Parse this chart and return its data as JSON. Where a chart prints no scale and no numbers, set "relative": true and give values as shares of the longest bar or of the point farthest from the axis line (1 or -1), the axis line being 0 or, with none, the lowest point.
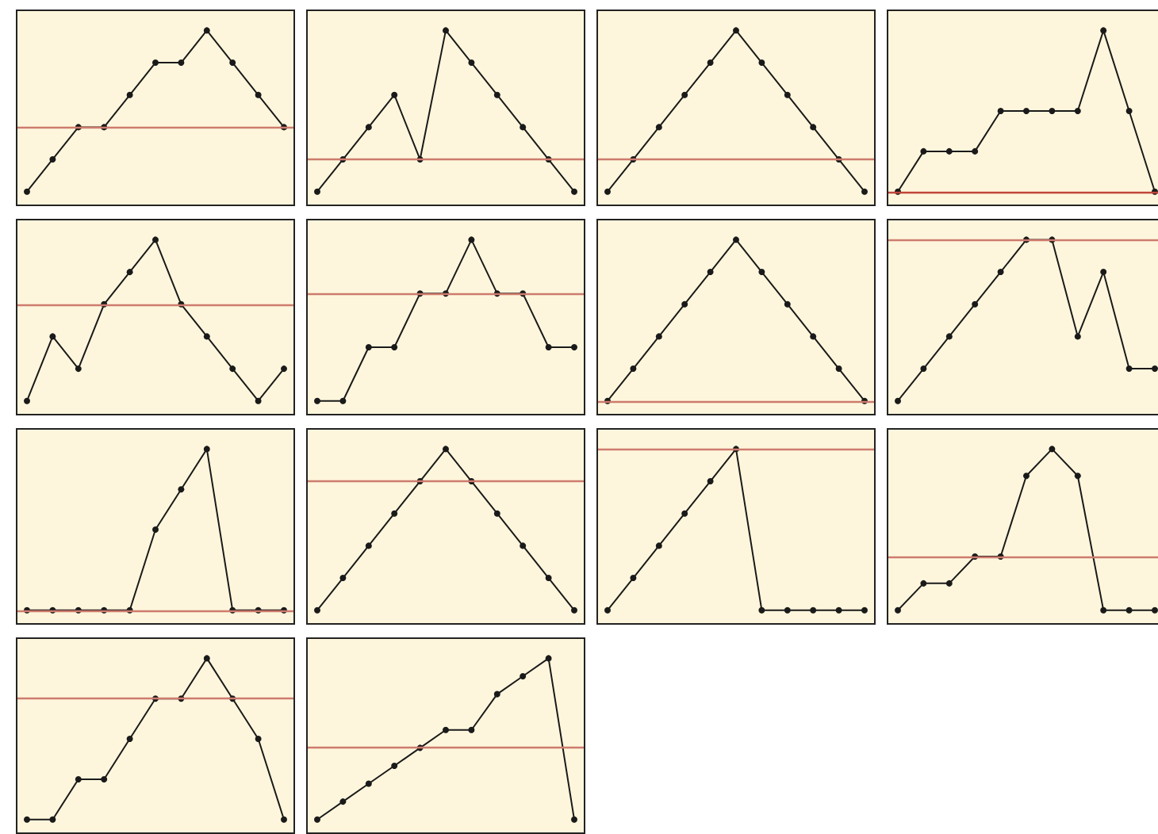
{
  "chart_data": [
    {
      "type": "line",
      "relative": true,
      "tick_labels": false,
      "marker": "circle",
      "categories": [
        null,
        null,
        null,
        null,
        null,
        null,
        null,
        null,
        null,
        null,
        null
      ],
      "series": [
        {
          "color": "#1a1a1a",
          "values": [
            -0.667,
            -0.333,
            0,
            0,
            0.333,
            0.667,
            0.667,
            1,
            0.667,
            0.333,
            0
          ]
        }
      ],
      "ref_lines": [
        {
          "axis": "y",
          "value": 0,
          "color": "#cd7b6e"
        }
      ]
    },
    {
      "type": "line",
      "relative": true,
      "tick_labels": false,
      "marker": "circle",
      "categories": [
        null,
        null,
        null,
        null,
        null,
        null,
        null,
        null,
        null,
        null,
        null
      ],
      "series": [
        {
          "color": "#1a1a1a",
          "values": [
            -0.25,
            0,
            0.25,
            0.5,
            0,
            1,
            0.75,
            0.5,
            0.25,
            0,
            -0.25
          ]
        }
      ],
      "ref_lines": [
        {
          "axis": "y",
          "value": 0,
          "color": "#cd7b6e"
        }
      ]
    },
    {
      "type": "line",
      "relative": true,
      "tick_labels": false,
      "marker": "circle",
      "categories": [
        null,
        null,
        null,
        null,
        null,
        null,
        null,
        null,
        null,
        null,
        null
      ],
      "series": [
        {
          "color": "#1a1a1a",
          "values": [
            -0.25,
            0,
            0.25,
            0.5,
            0.75,
            1,
            0.75,
            0.5,
            0.25,
            0,
            -0.25
          ]
        }
      ],
      "ref_lines": [
        {
          "axis": "y",
          "value": 0,
          "color": "#cd7b6e"
        }
      ]
    },
    {
      "type": "line",
      "relative": true,
      "tick_labels": false,
      "marker": "circle",
      "categories": [
        null,
        null,
        null,
        null,
        null,
        null,
        null,
        null,
        null,
        null,
        null
      ],
      "series": [
        {
          "color": "#1a1a1a",
          "values": [
            0,
            0.25,
            0.25,
            0.25,
            0.5,
            0.5,
            0.5,
            0.5,
            1,
            0.5,
            0
          ]
        }
      ],
      "ref_lines": [
        {
          "axis": "y",
          "value": 0,
          "color": "#c0453a"
        }
      ]
    },
    {
      "type": "line",
      "relative": true,
      "tick_labels": false,
      "marker": "circle",
      "categories": [
        null,
        null,
        null,
        null,
        null,
        null,
        null,
        null,
        null,
        null,
        null
      ],
      "series": [
        {
          "color": "#1a1a1a",
          "values": [
            -1,
            -0.333,
            -0.667,
            0,
            0.333,
            0.667,
            0,
            -0.333,
            -0.667,
            -1,
            -0.667
          ]
        }
      ],
      "ref_lines": [
        {
          "axis": "y",
          "value": 0,
          "color": "#cd7b6e"
        }
      ]
    },
    {
      "type": "line",
      "relative": true,
      "tick_labels": false,
      "marker": "circle",
      "categories": [
        null,
        null,
        null,
        null,
        null,
        null,
        null,
        null,
        null,
        null,
        null
      ],
      "series": [
        {
          "color": "#1a1a1a",
          "values": [
            -1,
            -1,
            -0.5,
            -0.5,
            0,
            0,
            0.5,
            0,
            0,
            -0.5,
            -0.5
          ]
        }
      ],
      "ref_lines": [
        {
          "axis": "y",
          "value": 0,
          "color": "#cd7b6e"
        }
      ]
    },
    {
      "type": "line",
      "relative": true,
      "tick_labels": false,
      "marker": "circle",
      "categories": [
        null,
        null,
        null,
        null,
        null,
        null,
        null,
        null,
        null,
        null,
        null
      ],
      "series": [
        {
          "color": "#1a1a1a",
          "values": [
            0,
            0.2,
            0.4,
            0.6,
            0.8,
            1,
            0.8,
            0.6,
            0.4,
            0.2,
            0
          ]
        }
      ],
      "ref_lines": [
        {
          "axis": "y",
          "value": 0,
          "color": "#cd7b6e"
        }
      ]
    },
    {
      "type": "line",
      "relative": true,
      "tick_labels": false,
      "marker": "circle",
      "categories": [
        null,
        null,
        null,
        null,
        null,
        null,
        null,
        null,
        null,
        null,
        null
      ],
      "series": [
        {
          "color": "#1a1a1a",
          "values": [
            -1,
            -0.8,
            -0.6,
            -0.4,
            -0.2,
            0,
            0,
            -0.6,
            -0.2,
            -0.8,
            -0.8
          ]
        }
      ],
      "ref_lines": [
        {
          "axis": "y",
          "value": 0,
          "color": "#cd7b6e"
        }
      ]
    },
    {
      "type": "line",
      "relative": true,
      "tick_labels": false,
      "marker": "circle",
      "categories": [
        null,
        null,
        null,
        null,
        null,
        null,
        null,
        null,
        null,
        null,
        null
      ],
      "series": [
        {
          "color": "#1a1a1a",
          "values": [
            0,
            0,
            0,
            0,
            0,
            0.5,
            0.75,
            1,
            0,
            0,
            0
          ]
        }
      ],
      "ref_lines": [
        {
          "axis": "y",
          "value": 0,
          "color": "#cd7b6e"
        }
      ]
    },
    {
      "type": "line",
      "relative": true,
      "tick_labels": false,
      "marker": "circle",
      "categories": [
        null,
        null,
        null,
        null,
        null,
        null,
        null,
        null,
        null,
        null,
        null
      ],
      "series": [
        {
          "color": "#1a1a1a",
          "values": [
            -1,
            -0.75,
            -0.5,
            -0.25,
            0,
            0.25,
            0,
            -0.25,
            -0.5,
            -0.75,
            -1
          ]
        }
      ],
      "ref_lines": [
        {
          "axis": "y",
          "value": 0,
          "color": "#cd7b6e"
        }
      ]
    },
    {
      "type": "line",
      "relative": true,
      "tick_labels": false,
      "marker": "circle",
      "categories": [
        null,
        null,
        null,
        null,
        null,
        null,
        null,
        null,
        null,
        null,
        null
      ],
      "series": [
        {
          "color": "#1a1a1a",
          "values": [
            -1,
            -0.8,
            -0.6,
            -0.4,
            -0.2,
            0,
            -1,
            -1,
            -1,
            -1,
            -1
          ]
        }
      ],
      "ref_lines": [
        {
          "axis": "y",
          "value": 0,
          "color": "#cd7b6e"
        }
      ]
    },
    {
      "type": "line",
      "relative": true,
      "tick_labels": false,
      "marker": "circle",
      "categories": [
        null,
        null,
        null,
        null,
        null,
        null,
        null,
        null,
        null,
        null,
        null
      ],
      "series": [
        {
          "color": "#1a1a1a",
          "values": [
            -0.5,
            -0.25,
            -0.25,
            0,
            0,
            0.75,
            1,
            0.75,
            -0.5,
            -0.5,
            -0.5
          ]
        }
      ],
      "ref_lines": [
        {
          "axis": "y",
          "value": 0,
          "color": "#cd7b6e"
        }
      ]
    },
    {
      "type": "line",
      "relative": true,
      "tick_labels": false,
      "marker": "circle",
      "categories": [
        null,
        null,
        null,
        null,
        null,
        null,
        null,
        null,
        null,
        null,
        null
      ],
      "series": [
        {
          "color": "#1a1a1a",
          "values": [
            -1,
            -1,
            -0.667,
            -0.667,
            -0.333,
            0,
            0,
            0.333,
            0,
            -0.333,
            -1
          ]
        }
      ],
      "ref_lines": [
        {
          "axis": "y",
          "value": 0,
          "color": "#cd7b6e"
        }
      ]
    },
    {
      "type": "line",
      "relative": true,
      "tick_labels": false,
      "marker": "circle",
      "categories": [
        null,
        null,
        null,
        null,
        null,
        null,
        null,
        null,
        null,
        null,
        null
      ],
      "series": [
        {
          "color": "#1a1a1a",
          "values": [
            -0.8,
            -0.6,
            -0.4,
            -0.2,
            0,
            0.2,
            0.2,
            0.6,
            0.8,
            1,
            -0.8
          ]
        }
      ],
      "ref_lines": [
        {
          "axis": "y",
          "value": 0,
          "color": "#cd7b6e"
        }
      ]
    }
  ]
}
